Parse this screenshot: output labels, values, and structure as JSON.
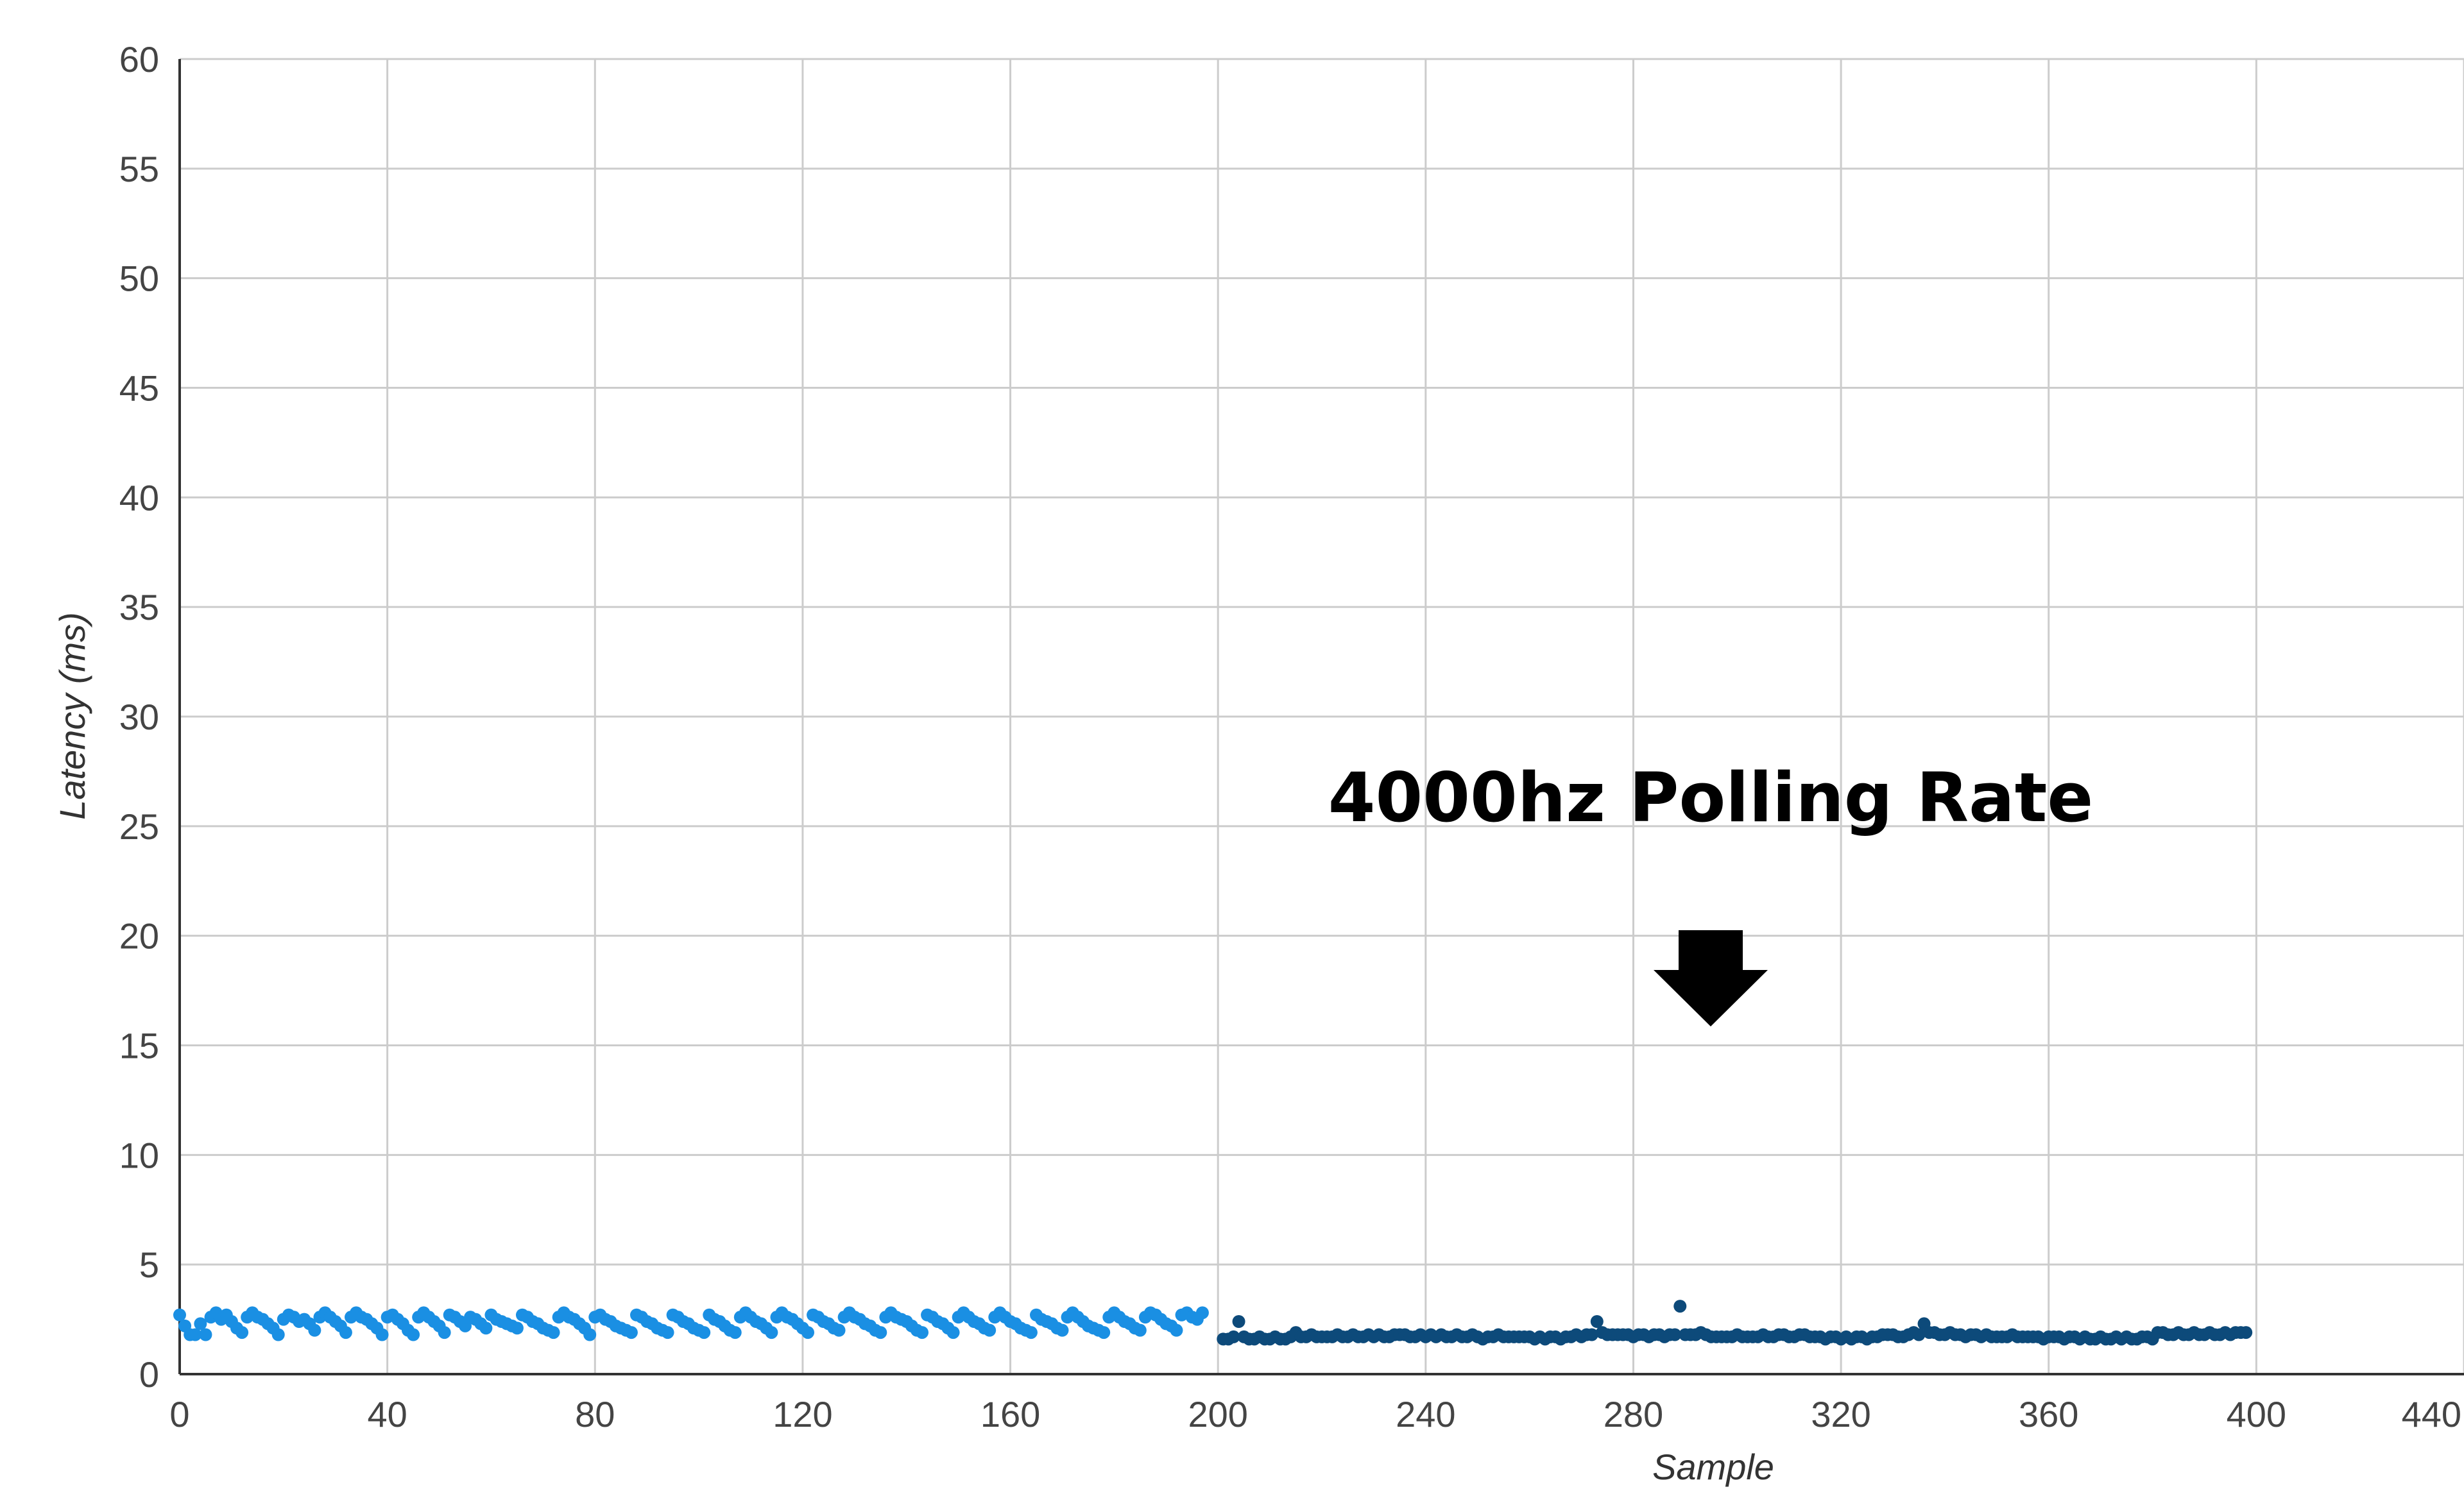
{
  "chart_data": {
    "type": "scatter",
    "xlabel": "Sample",
    "ylabel": "Latency (ms)",
    "xlim": [
      0,
      440
    ],
    "ylim": [
      0,
      60
    ],
    "x_ticks": [
      0,
      40,
      80,
      120,
      160,
      200,
      240,
      280,
      320,
      360,
      400,
      440
    ],
    "y_ticks": [
      0,
      5,
      10,
      15,
      20,
      25,
      30,
      35,
      40,
      45,
      50,
      55,
      60
    ],
    "grid": true,
    "legend": "none",
    "annotation": {
      "text": "4000hz Polling Rate",
      "arrow": "down",
      "points_to_x": 300
    },
    "series": [
      {
        "color": "#1a8fe3",
        "x_start": 0,
        "y": [
          2.7,
          2.2,
          1.8,
          1.8,
          2.3,
          1.8,
          2.6,
          2.8,
          2.5,
          2.7,
          2.4,
          2.1,
          1.9,
          2.6,
          2.8,
          2.6,
          2.5,
          2.3,
          2.1,
          1.8,
          2.5,
          2.7,
          2.6,
          2.4,
          2.5,
          2.3,
          2.0,
          2.6,
          2.8,
          2.6,
          2.4,
          2.2,
          1.9,
          2.6,
          2.8,
          2.6,
          2.5,
          2.3,
          2.1,
          1.8,
          2.6,
          2.7,
          2.5,
          2.3,
          2.0,
          1.8,
          2.6,
          2.8,
          2.6,
          2.4,
          2.2,
          1.9,
          2.7,
          2.6,
          2.4,
          2.2,
          2.6,
          2.5,
          2.3,
          2.1,
          2.7,
          2.5,
          2.4,
          2.3,
          2.2,
          2.1,
          2.7,
          2.6,
          2.4,
          2.3,
          2.1,
          2.0,
          1.9,
          2.6,
          2.8,
          2.6,
          2.5,
          2.3,
          2.1,
          1.8,
          2.6,
          2.7,
          2.5,
          2.4,
          2.2,
          2.1,
          2.0,
          1.9,
          2.7,
          2.6,
          2.4,
          2.3,
          2.1,
          2.0,
          1.9,
          2.7,
          2.6,
          2.4,
          2.3,
          2.1,
          2.0,
          1.9,
          2.7,
          2.5,
          2.4,
          2.2,
          2.0,
          1.9,
          2.6,
          2.8,
          2.6,
          2.4,
          2.3,
          2.1,
          1.9,
          2.6,
          2.8,
          2.6,
          2.5,
          2.3,
          2.1,
          1.9,
          2.7,
          2.6,
          2.4,
          2.3,
          2.1,
          2.0,
          2.6,
          2.8,
          2.6,
          2.5,
          2.3,
          2.2,
          2.0,
          1.9,
          2.6,
          2.8,
          2.6,
          2.5,
          2.4,
          2.2,
          2.0,
          1.9,
          2.7,
          2.6,
          2.4,
          2.3,
          2.1,
          1.9,
          2.6,
          2.8,
          2.6,
          2.4,
          2.3,
          2.1,
          2.0,
          2.6,
          2.8,
          2.6,
          2.4,
          2.3,
          2.1,
          2.0,
          1.9,
          2.7,
          2.5,
          2.4,
          2.3,
          2.1,
          2.0,
          2.6,
          2.8,
          2.6,
          2.4,
          2.2,
          2.1,
          2.0,
          1.9,
          2.6,
          2.8,
          2.6,
          2.4,
          2.3,
          2.1,
          2.0,
          2.6,
          2.8,
          2.7,
          2.5,
          2.3,
          2.2,
          2.0,
          2.7,
          2.8,
          2.6,
          2.5,
          2.8
        ]
      },
      {
        "color": "#0d4a7a",
        "x_start": 201,
        "y": [
          1.6,
          1.6,
          1.7,
          2.4,
          1.7,
          1.6,
          1.6,
          1.7,
          1.6,
          1.6,
          1.7,
          1.6,
          1.6,
          1.7,
          1.9,
          1.7,
          1.7,
          1.8,
          1.7,
          1.7,
          1.7,
          1.7,
          1.8,
          1.7,
          1.7,
          1.8,
          1.7,
          1.7,
          1.8,
          1.7,
          1.8,
          1.7,
          1.7,
          1.8,
          1.8,
          1.8,
          1.7,
          1.7,
          1.8,
          1.7,
          1.8,
          1.7,
          1.8,
          1.7,
          1.7,
          1.8,
          1.7,
          1.7,
          1.8,
          1.7,
          1.6,
          1.7,
          1.7,
          1.8,
          1.7,
          1.7,
          1.7,
          1.7,
          1.7,
          1.7,
          1.6,
          1.7,
          1.6,
          1.7,
          1.7,
          1.6,
          1.7,
          1.7,
          1.8,
          1.7,
          1.8,
          1.8,
          2.4,
          1.9,
          1.8,
          1.8,
          1.8,
          1.8,
          1.8,
          1.7,
          1.8,
          1.8,
          1.7,
          1.8,
          1.8,
          1.7,
          1.8,
          1.8,
          3.1,
          1.8,
          1.8,
          1.8,
          1.9,
          1.8,
          1.7,
          1.7,
          1.7,
          1.7,
          1.7,
          1.8,
          1.7,
          1.7,
          1.7,
          1.7,
          1.8,
          1.7,
          1.7,
          1.8,
          1.8,
          1.7,
          1.7,
          1.8,
          1.8,
          1.7,
          1.7,
          1.7,
          1.6,
          1.7,
          1.7,
          1.6,
          1.7,
          1.6,
          1.7,
          1.7,
          1.6,
          1.7,
          1.7,
          1.8,
          1.8,
          1.8,
          1.7,
          1.7,
          1.8,
          1.9,
          1.8,
          2.3,
          1.9,
          1.9,
          1.8,
          1.8,
          1.9,
          1.8,
          1.8,
          1.7,
          1.8,
          1.8,
          1.7,
          1.8,
          1.7,
          1.7,
          1.7,
          1.7,
          1.8,
          1.7,
          1.7,
          1.7,
          1.7,
          1.7,
          1.6,
          1.7,
          1.7,
          1.7,
          1.6,
          1.7,
          1.7,
          1.6,
          1.7,
          1.6,
          1.6,
          1.7,
          1.6,
          1.6,
          1.7,
          1.6,
          1.7,
          1.6,
          1.6,
          1.7,
          1.7,
          1.6,
          1.9,
          1.9,
          1.8,
          1.8,
          1.9,
          1.8,
          1.8,
          1.9,
          1.8,
          1.8,
          1.9,
          1.8,
          1.8,
          1.9,
          1.8,
          1.9,
          1.9,
          1.9
        ]
      }
    ]
  }
}
